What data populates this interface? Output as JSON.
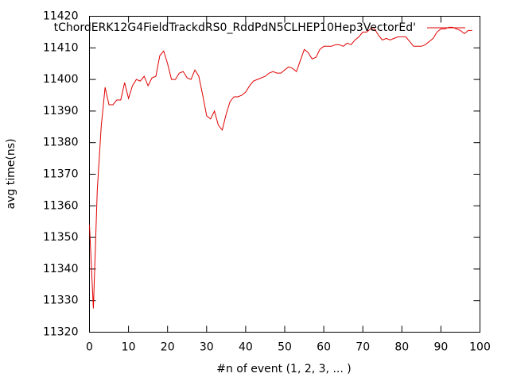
{
  "chart_data": {
    "type": "line",
    "x_label": "#n of event (1, 2, 3, ... )",
    "y_label": "avg time(ns)",
    "legend": "top-right",
    "grid": false,
    "xlim": [
      0,
      100
    ],
    "xticks": [
      0,
      10,
      20,
      30,
      40,
      50,
      60,
      70,
      80,
      90,
      100
    ],
    "ylim": [
      11320,
      11420
    ],
    "yticks": [
      11320,
      11330,
      11340,
      11350,
      11360,
      11370,
      11380,
      11390,
      11400,
      11410,
      11420
    ],
    "x": [
      0,
      1,
      2,
      3,
      4,
      5,
      6,
      7,
      8,
      9,
      10,
      11,
      12,
      13,
      14,
      15,
      16,
      17,
      18,
      19,
      20,
      21,
      22,
      23,
      24,
      25,
      26,
      27,
      28,
      29,
      30,
      31,
      32,
      33,
      34,
      35,
      36,
      37,
      38,
      39,
      40,
      41,
      42,
      43,
      44,
      45,
      46,
      47,
      48,
      49,
      50,
      51,
      52,
      53,
      54,
      55,
      56,
      57,
      58,
      59,
      60,
      61,
      62,
      63,
      64,
      65,
      66,
      67,
      68,
      69,
      70,
      71,
      72,
      73,
      74,
      75,
      76,
      77,
      78,
      79,
      80,
      81,
      82,
      83,
      84,
      85,
      86,
      87,
      88,
      89,
      90,
      91,
      92,
      93,
      94,
      95,
      96,
      97,
      98
    ],
    "series": [
      {
        "name": "tChordERK12G4FieldTrackdRS0_RddPdN5CLHEP10Hep3VectorEd'",
        "color": "#e00000",
        "values": [
          11354,
          11327.5,
          11365,
          11385,
          11397.5,
          11392,
          11392,
          11393.5,
          11393.5,
          11399,
          11394,
          11398,
          11400,
          11399.5,
          11401,
          11398,
          11400.5,
          11401,
          11407.5,
          11409,
          11405,
          11400,
          11400,
          11402,
          11402.5,
          11400.5,
          11400,
          11403,
          11401,
          11395,
          11388.5,
          11387.5,
          11390,
          11385.5,
          11384,
          11389,
          11393,
          11394.5,
          11394.5,
          11395,
          11396,
          11398,
          11399.5,
          11400,
          11400.5,
          11401,
          11402,
          11402.5,
          11402,
          11402,
          11403,
          11404,
          11403.5,
          11402.5,
          11406,
          11409.5,
          11408.5,
          11406.5,
          11407,
          11409.5,
          11410.5,
          11410.5,
          11410.5,
          11411,
          11411,
          11410.5,
          11411.5,
          11411,
          11412.5,
          11413.5,
          11415,
          11415,
          11416,
          11416,
          11414,
          11412.5,
          11413,
          11412.5,
          11413,
          11413.5,
          11413.5,
          11413.5,
          11412,
          11410.5,
          11410.5,
          11410.5,
          11411,
          11412,
          11413,
          11415,
          11416,
          11416,
          11416.5,
          11416.5,
          11416,
          11415.5,
          11414.5,
          11415.5,
          11415.5
        ]
      }
    ]
  }
}
